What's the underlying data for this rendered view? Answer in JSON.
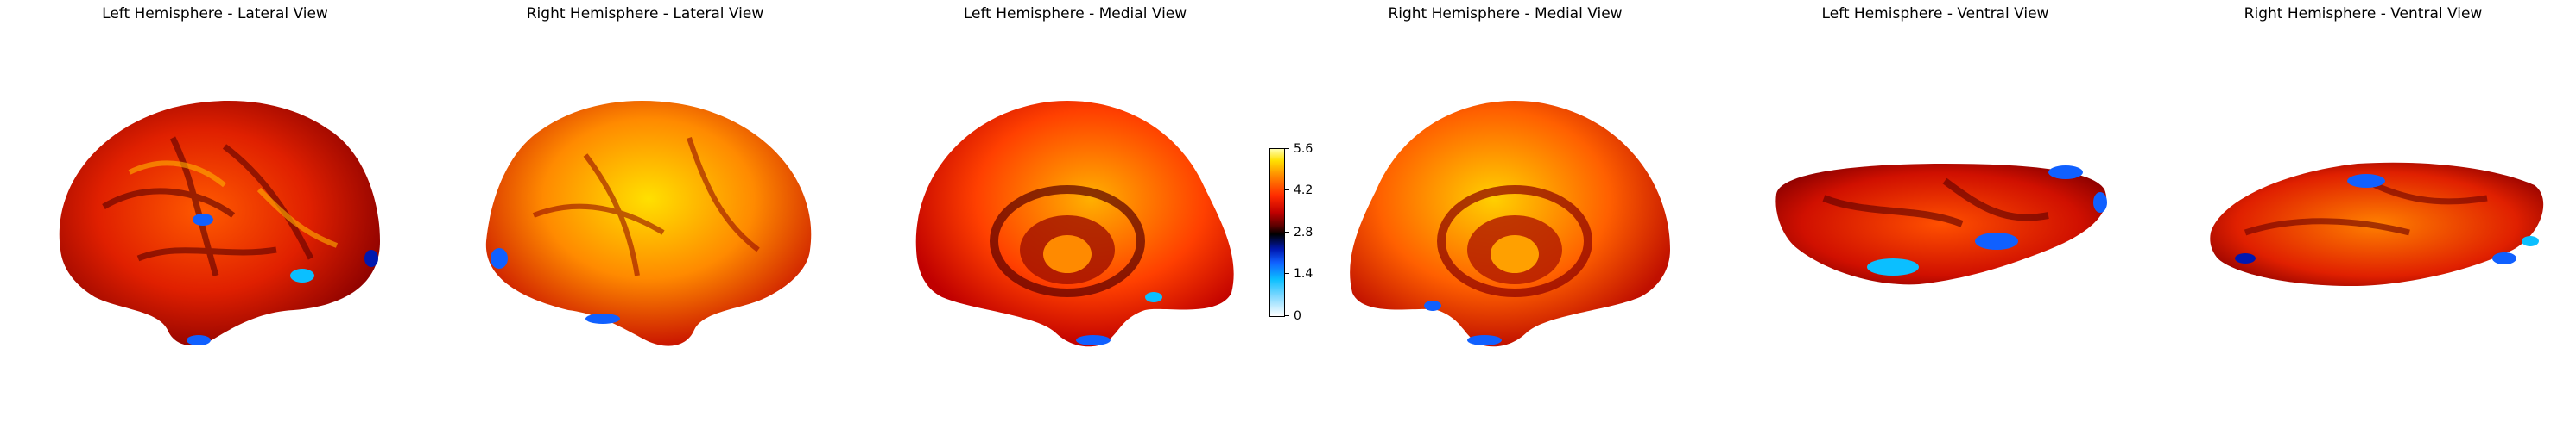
{
  "panels": [
    {
      "title": "Left Hemisphere - Lateral View"
    },
    {
      "title": "Right Hemisphere - Lateral View"
    },
    {
      "title": "Left Hemisphere - Medial View"
    },
    {
      "title": "Right Hemisphere - Medial View"
    },
    {
      "title": "Left Hemisphere - Ventral View"
    },
    {
      "title": "Right Hemisphere - Ventral View"
    }
  ],
  "colorbar": {
    "ticks": [
      "0",
      "1.4",
      "2.8",
      "4.2",
      "5.6"
    ],
    "min": 0,
    "max": 5.6,
    "colormap": [
      "#ffffff",
      "#0bbfff",
      "#1060ff",
      "#000000",
      "#c00000",
      "#ff2a00",
      "#ff8a00",
      "#ffe000"
    ]
  }
}
